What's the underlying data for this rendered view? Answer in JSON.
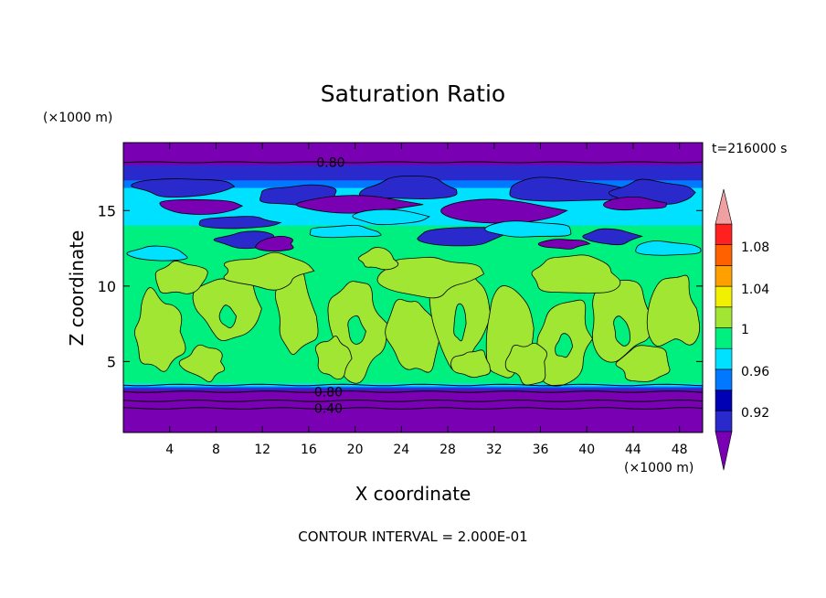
{
  "chart_data": {
    "type": "contour",
    "title": "Saturation Ratio",
    "xlabel": "X coordinate",
    "ylabel": "Z coordinate",
    "x_units": "(×1000 m)",
    "y_units": "(×1000 m)",
    "time_label": "t=216000 s",
    "contour_interval_label": "CONTOUR INTERVAL = 2.000E-01",
    "xlim": [
      0,
      50
    ],
    "ylim": [
      0.3,
      19.5
    ],
    "x_ticks": [
      "4",
      "8",
      "12",
      "16",
      "20",
      "24",
      "28",
      "32",
      "36",
      "40",
      "44",
      "48"
    ],
    "y_ticks": [
      "5",
      "10",
      "15"
    ],
    "contour_labels": [
      {
        "text": "0.80",
        "x": 17.9,
        "z": 18.2
      },
      {
        "text": "0.80",
        "x": 17.7,
        "z": 3.0
      },
      {
        "text": "0.40",
        "x": 17.7,
        "z": 1.9
      }
    ],
    "colorbar": {
      "labels": [
        "1.08",
        "1.04",
        "1",
        "0.96",
        "0.92"
      ],
      "levels": [
        0.92,
        0.94,
        0.96,
        0.98,
        1.0,
        1.02,
        1.04,
        1.06,
        1.08,
        1.1
      ],
      "colors": [
        "#7a00b4",
        "#2a2acc",
        "#0000b4",
        "#0078ff",
        "#00e0ff",
        "#00f080",
        "#a0e632",
        "#f0f000",
        "#ffa000",
        "#ff6000",
        "#ff2020",
        "#f0a0a0"
      ]
    },
    "fill_colors": {
      "purple": "#7a00b4",
      "dark_blue": "#2a2acc",
      "blue": "#0078ff",
      "cyan": "#00e0ff",
      "green": "#00f080",
      "yellow_green": "#a0e632"
    }
  }
}
